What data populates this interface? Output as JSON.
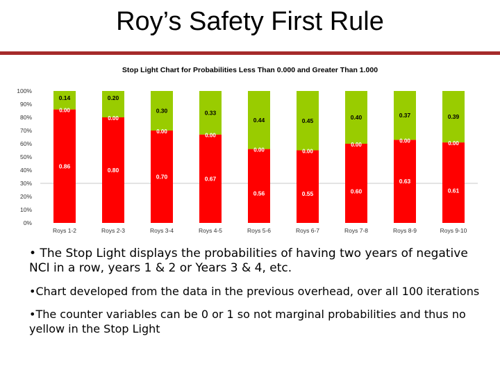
{
  "slide": {
    "title": "Roy’s Safety First Rule"
  },
  "colors": {
    "title_rule": "#a52a2a",
    "green": "#99cc00",
    "red": "#ff0000",
    "gridline": "#c8c8c8"
  },
  "chart_data": {
    "type": "bar",
    "stacked": true,
    "title": "Stop Light Chart for Probabilities Less Than 0.000 and Greater Than 1.000",
    "xlabel": "",
    "ylabel": "",
    "ylim": [
      0,
      1
    ],
    "y_tick_labels": [
      "0%",
      "10%",
      "20%",
      "30%",
      "40%",
      "50%",
      "60%",
      "70%",
      "80%",
      "90%",
      "100%"
    ],
    "grid": false,
    "reference_line": 0.3,
    "categories": [
      "Roys 1-2",
      "Roys 2-3",
      "Roys 3-4",
      "Roys 4-5",
      "Roys 5-6",
      "Roys 6-7",
      "Roys 7-8",
      "Roys 8-9",
      "Roys 9-10"
    ],
    "series": [
      {
        "color": "#ff0000",
        "values": [
          0.86,
          0.8,
          0.7,
          0.67,
          0.56,
          0.55,
          0.6,
          0.63,
          0.61
        ],
        "labels": [
          "0.86",
          "0.80",
          "0.70",
          "0.67",
          "0.56",
          "0.55",
          "0.60",
          "0.63",
          "0.61"
        ]
      },
      {
        "color": "#99cc00",
        "values": [
          0.14,
          0.2,
          0.3,
          0.33,
          0.44,
          0.45,
          0.4,
          0.37,
          0.39
        ],
        "labels": [
          "0.14",
          "0.20",
          "0.30",
          "0.33",
          "0.44",
          "0.45",
          "0.40",
          "0.37",
          "0.39"
        ]
      }
    ],
    "boundary_label": "0.00"
  },
  "bullets": [
    {
      "symbol": "•",
      "text": " The Stop Light displays the probabilities of having two years of negative NCI in a row, years 1 & 2 or Years 3 & 4, etc."
    },
    {
      "symbol": "•",
      "text": "Chart developed from the data in the previous overhead, over all 100 iterations"
    },
    {
      "symbol": "•",
      "text": "The counter variables can be 0 or 1 so not marginal probabilities and thus no yellow in the Stop Light"
    }
  ]
}
